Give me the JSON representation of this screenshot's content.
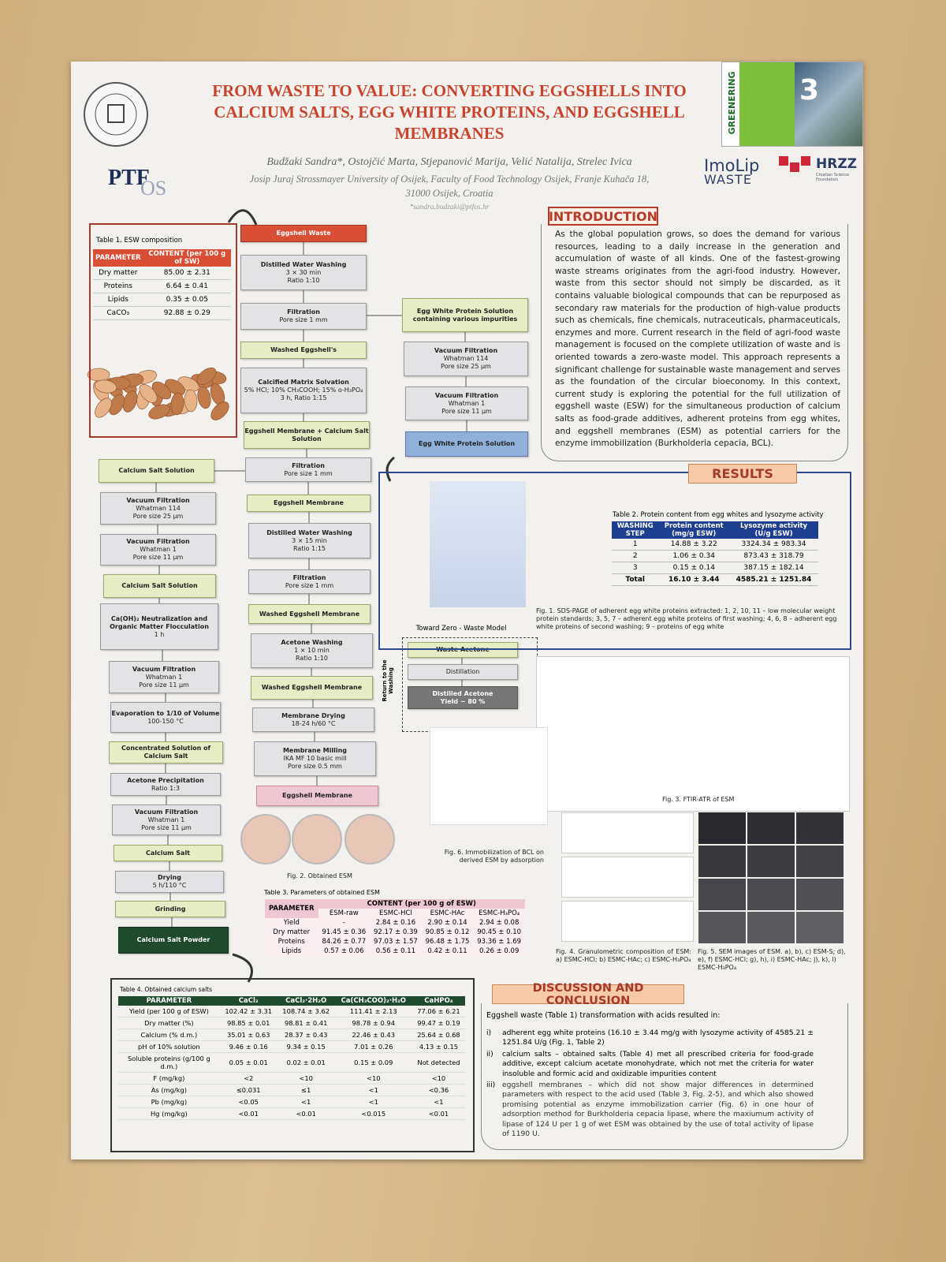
{
  "header": {
    "title": "FROM WASTE TO VALUE: CONVERTING EGGSHELLS INTO CALCIUM SALTS, EGG WHITE PROTEINS, AND EGGSHELL MEMBRANES",
    "authors": "Budžaki Sandra*, Ostojčić Marta, Stjepanović Marija, Velić Natalija, Strelec Ivica",
    "affiliation": "Josip Juraj Strossmayer University of Osijek, Faculty of Food Technology Osijek, Franje Kuhača 18,",
    "address": "31000 Osijek, Croatia",
    "email": "*sandra.budzaki@ptfos.hr"
  },
  "logos": {
    "ptf": "PTF",
    "os": "OS",
    "greenering": "GREENERING",
    "edition": "3",
    "imolip": "ImoLip",
    "waste": "WASTE",
    "hrzz": "HRZZ",
    "hrzz_sub": "Croatian Science Foundation"
  },
  "table1": {
    "caption": "Table 1. ESW composition",
    "headers": [
      "PARAMETER",
      "CONTENT (per 100 g of SW)"
    ],
    "rows": [
      [
        "Dry matter",
        "85.00 ± 2.31"
      ],
      [
        "Proteins",
        "6.64 ± 0.41"
      ],
      [
        "Lipids",
        "0.35 ± 0.05"
      ],
      [
        "CaCO₃",
        "92.88 ± 0.29"
      ]
    ]
  },
  "flow": {
    "nodes": [
      {
        "color": "red",
        "lines": [
          "Eggshell Waste"
        ]
      },
      {
        "color": "plain",
        "lines": [
          "Distilled Water Washing",
          "3 × 30 min",
          "Ratio 1:10"
        ]
      },
      {
        "color": "plain",
        "lines": [
          "Filtration",
          "Pore size 1 mm"
        ]
      },
      {
        "color": "green",
        "lines": [
          "Washed Eggshell's"
        ]
      },
      {
        "color": "plain",
        "lines": [
          "Calcified Matrix Solvation",
          "5% HCl; 10% CH₃COOH; 15% o-H₃PO₄",
          "3 h, Ratio 1:15"
        ]
      },
      {
        "color": "green",
        "lines": [
          "Eggshell Membrane + Calcium Salt Solution"
        ]
      },
      {
        "color": "plain",
        "lines": [
          "Filtration",
          "Pore size 1 mm"
        ]
      },
      {
        "color": "green",
        "lines": [
          "Eggshell Membrane"
        ]
      },
      {
        "color": "plain",
        "lines": [
          "Distilled Water Washing",
          "3 × 15 min",
          "Ratio 1:15"
        ]
      },
      {
        "color": "plain",
        "lines": [
          "Filtration",
          "Pore size 1 mm"
        ]
      },
      {
        "color": "green",
        "lines": [
          "Washed Eggshell Membrane"
        ]
      },
      {
        "color": "plain",
        "lines": [
          "Acetone Washing",
          "1 × 10 min",
          "Ratio 1:10"
        ]
      },
      {
        "color": "green",
        "lines": [
          "Washed Eggshell Membrane"
        ]
      },
      {
        "color": "plain",
        "lines": [
          "Membrane Drying",
          "18-24 h/60 °C"
        ]
      },
      {
        "color": "plain",
        "lines": [
          "Membrane Milling",
          "IKA MF 10 basic mill",
          "Pore size 0.5 mm"
        ]
      },
      {
        "color": "pink",
        "lines": [
          "Eggshell Membrane"
        ]
      },
      {
        "color": "green",
        "lines": [
          "Calcium Salt Solution"
        ]
      },
      {
        "color": "plain",
        "lines": [
          "Vacuum Filtration",
          "Whatman 114",
          "Pore size 25 µm"
        ]
      },
      {
        "color": "plain",
        "lines": [
          "Vacuum Filtration",
          "Whatman 1",
          "Pore size 11 µm"
        ]
      },
      {
        "color": "green",
        "lines": [
          "Calcium Salt Solution"
        ]
      },
      {
        "color": "plain",
        "lines": [
          "Ca(OH)₂ Neutralization and Organic Matter Flocculation",
          "1 h"
        ]
      },
      {
        "color": "plain",
        "lines": [
          "Vacuum Filtration",
          "Whatman 1",
          "Pore size 11 µm"
        ]
      },
      {
        "color": "plain",
        "lines": [
          "Evaporation to 1/10 of Volume",
          "100-150 °C"
        ]
      },
      {
        "color": "green",
        "lines": [
          "Concentrated Solution of Calcium Salt"
        ]
      },
      {
        "color": "plain",
        "lines": [
          "Acetone Precipitation",
          "Ratio 1:3"
        ]
      },
      {
        "color": "plain",
        "lines": [
          "Vacuum Filtration",
          "Whatman 1",
          "Pore size 11 µm"
        ]
      },
      {
        "color": "green",
        "lines": [
          "Calcium Salt"
        ]
      },
      {
        "color": "plain",
        "lines": [
          "Drying",
          "5 h/110 °C"
        ]
      },
      {
        "color": "green",
        "lines": [
          "Grinding"
        ]
      },
      {
        "color": "dark",
        "lines": [
          "Calcium Salt Powder"
        ]
      },
      {
        "color": "green",
        "lines": [
          "Egg White Protein Solution containing various impurities"
        ]
      },
      {
        "color": "plain",
        "lines": [
          "Vacuum Filtration",
          "Whatman 114",
          "Pore size 25 µm"
        ]
      },
      {
        "color": "plain",
        "lines": [
          "Vacuum Filtration",
          "Whatman 1",
          "Pore size 11 µm"
        ]
      },
      {
        "color": "blue",
        "lines": [
          "Egg White Protein Solution"
        ]
      }
    ]
  },
  "zero_waste": {
    "title": "Toward Zero - Waste Model",
    "side": "Return to the Washing",
    "nodes": [
      {
        "color": "green",
        "lines": [
          "Waste Acetone"
        ]
      },
      {
        "color": "plain",
        "lines": [
          "Distillation"
        ]
      },
      {
        "color": "gray",
        "lines": [
          "Distilled Acetone",
          "Yield ~ 80 %"
        ]
      }
    ]
  },
  "introduction": {
    "heading": "INTRODUCTION",
    "text": "As the global population grows, so does the demand for various resources, leading to a daily increase in the generation and accumulation of waste of all kinds. One of the fastest-growing waste streams originates from the agri-food industry. However, waste from this sector should not simply be discarded, as it contains valuable biological compounds that can be repurposed as secondary raw materials for the production of high-value products such as chemicals, fine chemicals, nutraceuticals, pharmaceuticals, enzymes and more. Current research in the field of agri-food waste management is focused on the complete utilization of waste and is oriented towards a zero-waste model. This approach represents a significant challenge for sustainable waste management and serves as the foundation of the circular bioeconomy. In this context, current study is exploring the potential for the full utilization of eggshell waste (ESW) for the simultaneous production of calcium salts as food-grade additives, adherent proteins from egg whites, and eggshell membranes (ESM) as potential carriers for the enzyme immobilization (Burkholderia cepacia, BCL)."
  },
  "results": {
    "heading": "RESULTS"
  },
  "table2": {
    "caption": "Table 2. Protein content from egg whites and lysozyme activity",
    "headers": [
      "WASHING STEP",
      "Protein content (mg/g ESW)",
      "Lysozyme activity (U/g ESW)"
    ],
    "rows": [
      [
        "1",
        "14.88 ± 3.22",
        "3324.34 ± 983.34"
      ],
      [
        "2",
        "1.06 ± 0.34",
        "873.43 ± 318.79"
      ],
      [
        "3",
        "0.15 ± 0.14",
        "387.15 ± 182.14"
      ],
      [
        "Total",
        "16.10 ± 3.44",
        "4585.21 ± 1251.84"
      ]
    ]
  },
  "figures": {
    "fig1": "Fig. 1. SDS-PAGE of adherent egg white proteins extracted: 1, 2, 10, 11 – low molecular weight protein standards; 3, 5, 7 – adherent egg white proteins of first washing; 4, 6, 8 – adherent egg white proteins of second washing; 9 – proteins of egg white",
    "fig2": "Fig. 2. Obtained ESM",
    "fig3": "Fig. 3. FTIR-ATR of ESM",
    "fig4": "Fig. 4. Granulometric composition of ESM: a) ESMC-HCl; b) ESMC-HAc; c) ESMC-H₃PO₄",
    "fig5": "Fig. 5. SEM images of ESM. a), b), c) ESM-S; d), e), f) ESMC-HCl; g), h), i) ESMC-HAc; j), k), l) ESMC-H₃PO₄",
    "fig6": "Fig. 6. Immobilization of BCL on derived ESM by adsorption"
  },
  "table3": {
    "caption": "Table 3. Parameters of obtained ESM",
    "headers": [
      "PARAMETER",
      "CONTENT (per 100 g of ESW)"
    ],
    "subheaders": [
      "ESM-raw",
      "ESMC-HCl",
      "ESMC-HAc",
      "ESMC-H₃PO₄"
    ],
    "rows": [
      [
        "Yield",
        "-",
        "2.84 ± 0.16",
        "2.90 ± 0.14",
        "2.94 ± 0.08"
      ],
      [
        "Dry matter",
        "91.45 ± 0.36",
        "92.17 ± 0.39",
        "90.85 ± 0.12",
        "90.45 ± 0.10"
      ],
      [
        "Proteins",
        "84.26 ± 0.77",
        "97.03 ± 1.57",
        "96.48 ± 1.75",
        "93.36 ± 1.69"
      ],
      [
        "Lipids",
        "0.57 ± 0.06",
        "0.56 ± 0.11",
        "0.42 ± 0.11",
        "0.26 ± 0.09"
      ]
    ]
  },
  "table4": {
    "caption": "Table 4. Obtained calcium salts",
    "headers": [
      "PARAMETER",
      "CaCl₂",
      "CaCl₂·2H₂O",
      "Ca(CH₃COO)₂·H₂O",
      "CaHPO₄"
    ],
    "rows": [
      [
        "Yield (per 100 g of ESW)",
        "102.42 ± 3.31",
        "108.74 ± 3.62",
        "111.41 ± 2.13",
        "77.06 ± 6.21"
      ],
      [
        "Dry matter (%)",
        "98.85 ± 0.01",
        "98.81 ± 0.41",
        "98.78 ± 0.94",
        "99.47 ± 0.19"
      ],
      [
        "Calcium (% d.m.)",
        "35.01 ± 0.63",
        "28.37 ± 0.43",
        "22.46 ± 0.43",
        "25.64 ± 0.68"
      ],
      [
        "pH of 10% solution",
        "9.46 ± 0.16",
        "9.34 ± 0.15",
        "7.01 ± 0.26",
        "4.13 ± 0.15"
      ],
      [
        "Soluble proteins (g/100 g d.m.)",
        "0.05 ± 0.01",
        "0.02 ± 0.01",
        "0.15 ± 0.09",
        "Not detected"
      ],
      [
        "F (mg/kg)",
        "<2",
        "<10",
        "<10",
        "<10"
      ],
      [
        "As (mg/kg)",
        "≤0.031",
        "≤1",
        "<1",
        "<0.36"
      ],
      [
        "Pb (mg/kg)",
        "<0.05",
        "<1",
        "<1",
        "<1"
      ],
      [
        "Hg (mg/kg)",
        "<0.01",
        "<0.01",
        "<0.015",
        "<0.01"
      ]
    ]
  },
  "discussion": {
    "heading": "DISCUSSION AND CONCLUSION",
    "intro": "Eggshell waste (Table 1) transformation with acids resulted in:",
    "items": [
      {
        "num": "i)",
        "text": "adherent egg white proteins (16.10 ± 3.44 mg/g with lysozyme activity of 4585.21 ± 1251.84 U/g (Fig. 1, Table 2)"
      },
      {
        "num": "ii)",
        "text": "calcium salts – obtained salts (Table 4) met all prescribed criteria for food-grade additive, except calcium acetate monohydrate, which not met the criteria for water insoluble and formic acid and oxidizable impurities content"
      },
      {
        "num": "iii)",
        "text": "eggshell membranes – which did not show major differences in determined parameters with respect to the acid used (Table 3, Fig. 2-5), and which also showed promising potential as enzyme immobilization carrier (Fig. 6) in one hour of adsorption method for Burkholderia cepacia lipase, where the maxiumum activity of lipase of 124 U per 1 g of wet ESM was obtained by the use of total activity of lipase of 1190 U."
      }
    ]
  }
}
